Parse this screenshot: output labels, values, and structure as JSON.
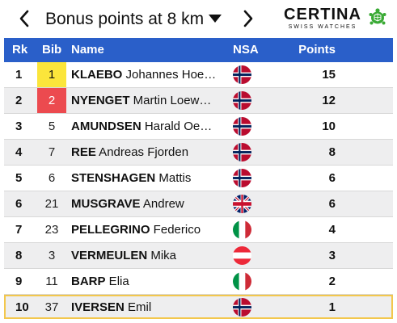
{
  "header": {
    "title": "Bonus points at 8 km",
    "prev_icon": "chevron-left",
    "next_icon": "chevron-right",
    "dropdown_icon": "caret-down",
    "sponsor": {
      "name": "CERTINA",
      "tagline": "SWISS WATCHES",
      "icon": "turtle-logo",
      "color": "#3aaa35"
    }
  },
  "table": {
    "header_color": "#2a5fc9",
    "columns": {
      "rank": "Rk",
      "bib": "Bib",
      "name": "Name",
      "nsa": "NSA",
      "points": "Points"
    },
    "rows": [
      {
        "rank": "1",
        "bib": "1",
        "last": "KLAEBO",
        "first": "Johannes Hoe…",
        "nsa": "NOR",
        "points": "15",
        "bib_color": "#fbe53b"
      },
      {
        "rank": "2",
        "bib": "2",
        "last": "NYENGET",
        "first": "Martin Loew…",
        "nsa": "NOR",
        "points": "12",
        "bib_color": "#ec4a4f"
      },
      {
        "rank": "3",
        "bib": "5",
        "last": "AMUNDSEN",
        "first": "Harald Oe…",
        "nsa": "NOR",
        "points": "10"
      },
      {
        "rank": "4",
        "bib": "7",
        "last": "REE",
        "first": "Andreas Fjorden",
        "nsa": "NOR",
        "points": "8"
      },
      {
        "rank": "5",
        "bib": "6",
        "last": "STENSHAGEN",
        "first": "Mattis",
        "nsa": "NOR",
        "points": "6"
      },
      {
        "rank": "6",
        "bib": "21",
        "last": "MUSGRAVE",
        "first": "Andrew",
        "nsa": "GBR",
        "points": "6"
      },
      {
        "rank": "7",
        "bib": "23",
        "last": "PELLEGRINO",
        "first": "Federico",
        "nsa": "ITA",
        "points": "4"
      },
      {
        "rank": "8",
        "bib": "3",
        "last": "VERMEULEN",
        "first": "Mika",
        "nsa": "AUT",
        "points": "3"
      },
      {
        "rank": "9",
        "bib": "11",
        "last": "BARP",
        "first": "Elia",
        "nsa": "ITA",
        "points": "2"
      },
      {
        "rank": "10",
        "bib": "37",
        "last": "IVERSEN",
        "first": "Emil",
        "nsa": "NOR",
        "points": "1",
        "highlighted": true
      }
    ]
  }
}
